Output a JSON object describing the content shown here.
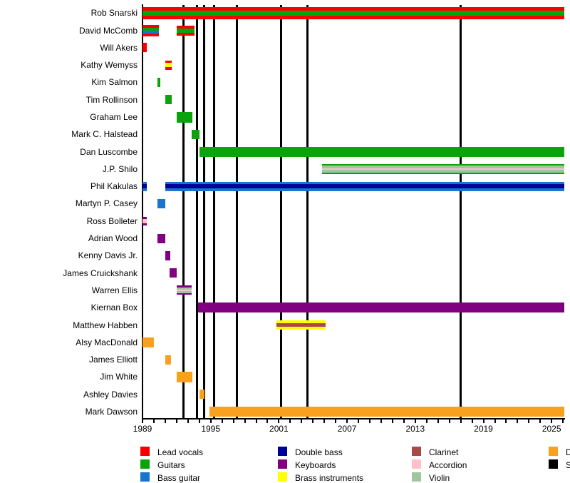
{
  "colors": {
    "lead_vocals": "#f70000",
    "guitars": "#0aa40a",
    "bass_guitar": "#1874cd",
    "double_bass": "#000099",
    "keyboards": "#800080",
    "brass_instruments": "#ffff00",
    "clarinet": "#a94a4a",
    "accordion": "#ffc0cb",
    "violin": "#a0c6a0",
    "drums": "#f9a11f",
    "studio_albums": "#000000",
    "axis": "#000000",
    "text": "#000000"
  },
  "chart_data": {
    "type": "timeline",
    "title": "",
    "x_axis": {
      "start": 1989,
      "end": 2026.1,
      "major_ticks": [
        1989,
        1995,
        2001,
        2007,
        2013,
        2019,
        2025
      ],
      "minor_tick_interval": 1
    },
    "album_markers": [
      1992.6,
      1993.8,
      1994.4,
      1995.3,
      1997.3,
      2001.2,
      2003.5,
      2017.0
    ],
    "members": [
      {
        "name": "Rob Snarski",
        "bars": [
          {
            "start": 1989.0,
            "end": 2026.1,
            "h": 17,
            "stripes": [
              {
                "color": "lead_vocals",
                "w": 5
              },
              {
                "color": "guitars",
                "w": 7
              },
              {
                "color": "lead_vocals",
                "w": 5
              }
            ]
          }
        ]
      },
      {
        "name": "David McComb",
        "bars": [
          {
            "start": 1989.0,
            "end": 1990.45,
            "h": 16,
            "stripes": [
              {
                "color": "lead_vocals",
                "w": 4
              },
              {
                "color": "guitars",
                "w": 4
              },
              {
                "color": "bass_guitar",
                "w": 4
              },
              {
                "color": "lead_vocals",
                "w": 4
              }
            ]
          },
          {
            "start": 1992.0,
            "end": 1993.6,
            "h": 14,
            "stripes": [
              {
                "color": "lead_vocals",
                "w": 4
              },
              {
                "color": "guitars",
                "w": 6
              },
              {
                "color": "lead_vocals",
                "w": 4
              }
            ]
          }
        ]
      },
      {
        "name": "Will Akers",
        "bars": [
          {
            "start": 1989.0,
            "end": 1989.4,
            "h": 13,
            "stripes": [
              {
                "color": "lead_vocals",
                "w": 1
              }
            ]
          }
        ]
      },
      {
        "name": "Kathy Wemyss",
        "bars": [
          {
            "start": 1991.0,
            "end": 1991.6,
            "h": 13,
            "stripes": [
              {
                "color": "lead_vocals",
                "w": 3
              },
              {
                "color": "brass_instruments",
                "w": 6
              },
              {
                "color": "lead_vocals",
                "w": 3
              }
            ]
          }
        ]
      },
      {
        "name": "Kim Salmon",
        "bars": [
          {
            "start": 1990.3,
            "end": 1990.6,
            "h": 13,
            "stripes": [
              {
                "color": "guitars",
                "w": 1
              }
            ]
          }
        ]
      },
      {
        "name": "Tim Rollinson",
        "bars": [
          {
            "start": 1991.0,
            "end": 1991.6,
            "h": 13,
            "stripes": [
              {
                "color": "guitars",
                "w": 1
              }
            ]
          }
        ]
      },
      {
        "name": "Graham Lee",
        "bars": [
          {
            "start": 1992.0,
            "end": 1993.4,
            "h": 15,
            "stripes": [
              {
                "color": "guitars",
                "w": 1
              }
            ]
          }
        ]
      },
      {
        "name": "Mark C. Halstead",
        "bars": [
          {
            "start": 1993.3,
            "end": 1994.0,
            "h": 13,
            "stripes": [
              {
                "color": "guitars",
                "w": 1
              }
            ]
          }
        ]
      },
      {
        "name": "Dan Luscombe",
        "bars": [
          {
            "start": 1994.0,
            "end": 2026.1,
            "h": 14,
            "stripes": [
              {
                "color": "guitars",
                "w": 1
              }
            ]
          }
        ]
      },
      {
        "name": "J.P. Shilo",
        "bars": [
          {
            "start": 2004.8,
            "end": 2026.1,
            "h": 14,
            "stripes": [
              {
                "color": "guitars",
                "w": 2
              },
              {
                "color": "violin",
                "w": 4
              },
              {
                "color": "accordion",
                "w": 1.5
              },
              {
                "color": "violin",
                "w": 4
              },
              {
                "color": "guitars",
                "w": 2
              }
            ]
          }
        ]
      },
      {
        "name": "Phil Kakulas",
        "bars": [
          {
            "start": 1989.0,
            "end": 1989.4,
            "h": 13,
            "stripes": [
              {
                "color": "bass_guitar",
                "w": 3
              },
              {
                "color": "double_bass",
                "w": 6
              },
              {
                "color": "bass_guitar",
                "w": 3
              }
            ]
          },
          {
            "start": 1991.0,
            "end": 2026.1,
            "h": 13,
            "stripes": [
              {
                "color": "bass_guitar",
                "w": 3
              },
              {
                "color": "double_bass",
                "w": 6
              },
              {
                "color": "bass_guitar",
                "w": 3
              }
            ]
          }
        ]
      },
      {
        "name": "Martyn P. Casey",
        "bars": [
          {
            "start": 1990.3,
            "end": 1991.0,
            "h": 13,
            "stripes": [
              {
                "color": "bass_guitar",
                "w": 1
              }
            ]
          }
        ]
      },
      {
        "name": "Ross Bolleter",
        "bars": [
          {
            "start": 1989.0,
            "end": 1989.4,
            "h": 12,
            "stripes": [
              {
                "color": "keyboards",
                "w": 3
              },
              {
                "color": "accordion",
                "w": 5
              },
              {
                "color": "keyboards",
                "w": 3
              }
            ]
          }
        ]
      },
      {
        "name": "Adrian Wood",
        "bars": [
          {
            "start": 1990.3,
            "end": 1991.0,
            "h": 13,
            "stripes": [
              {
                "color": "keyboards",
                "w": 1
              }
            ]
          }
        ]
      },
      {
        "name": "Kenny Davis Jr.",
        "bars": [
          {
            "start": 1991.0,
            "end": 1991.45,
            "h": 13,
            "stripes": [
              {
                "color": "keyboards",
                "w": 1
              }
            ]
          }
        ]
      },
      {
        "name": "James Cruickshank",
        "bars": [
          {
            "start": 1991.4,
            "end": 1992.0,
            "h": 13,
            "stripes": [
              {
                "color": "keyboards",
                "w": 1
              }
            ]
          }
        ]
      },
      {
        "name": "Warren Ellis",
        "bars": [
          {
            "start": 1992.0,
            "end": 1993.35,
            "h": 13,
            "stripes": [
              {
                "color": "keyboards",
                "w": 2.5
              },
              {
                "color": "violin",
                "w": 3
              },
              {
                "color": "accordion",
                "w": 1.5
              },
              {
                "color": "violin",
                "w": 3
              },
              {
                "color": "keyboards",
                "w": 2.5
              }
            ]
          }
        ]
      },
      {
        "name": "Kiernan Box",
        "bars": [
          {
            "start": 1993.9,
            "end": 2026.1,
            "h": 14,
            "stripes": [
              {
                "color": "keyboards",
                "w": 1
              }
            ]
          }
        ]
      },
      {
        "name": "Matthew Habben",
        "bars": [
          {
            "start": 2000.8,
            "end": 2005.1,
            "h": 13,
            "stripes": [
              {
                "color": "brass_instruments",
                "w": 4
              },
              {
                "color": "clarinet",
                "w": 5
              },
              {
                "color": "brass_instruments",
                "w": 4
              }
            ]
          }
        ]
      },
      {
        "name": "Alsy MacDonald",
        "bars": [
          {
            "start": 1989.0,
            "end": 1990.0,
            "h": 14,
            "stripes": [
              {
                "color": "drums",
                "w": 1
              }
            ]
          }
        ]
      },
      {
        "name": "James Elliott",
        "bars": [
          {
            "start": 1991.0,
            "end": 1991.5,
            "h": 13,
            "stripes": [
              {
                "color": "drums",
                "w": 1
              }
            ]
          }
        ]
      },
      {
        "name": "Jim White",
        "bars": [
          {
            "start": 1992.0,
            "end": 1993.4,
            "h": 15,
            "stripes": [
              {
                "color": "drums",
                "w": 1
              }
            ]
          }
        ]
      },
      {
        "name": "Ashley Davies",
        "bars": [
          {
            "start": 1994.0,
            "end": 1994.45,
            "h": 13,
            "stripes": [
              {
                "color": "drums",
                "w": 1
              }
            ]
          }
        ]
      },
      {
        "name": "Mark Dawson",
        "bars": [
          {
            "start": 1994.9,
            "end": 2026.1,
            "h": 14,
            "stripes": [
              {
                "color": "drums",
                "w": 1
              }
            ]
          }
        ]
      }
    ],
    "legend": {
      "columns": [
        {
          "items": [
            {
              "color": "lead_vocals",
              "label": "Lead vocals"
            },
            {
              "color": "guitars",
              "label": "Guitars"
            },
            {
              "color": "bass_guitar",
              "label": "Bass guitar"
            }
          ]
        },
        {
          "items": [
            {
              "color": "double_bass",
              "label": "Double bass"
            },
            {
              "color": "keyboards",
              "label": "Keyboards"
            },
            {
              "color": "brass_instruments",
              "label": "Brass instruments"
            }
          ]
        },
        {
          "items": [
            {
              "color": "clarinet",
              "label": "Clarinet"
            },
            {
              "color": "accordion",
              "label": "Accordion"
            },
            {
              "color": "violin",
              "label": "Violin"
            }
          ]
        },
        {
          "items": [
            {
              "color": "drums",
              "label": "D"
            },
            {
              "color": "studio_albums",
              "label": "S"
            }
          ]
        }
      ]
    }
  }
}
